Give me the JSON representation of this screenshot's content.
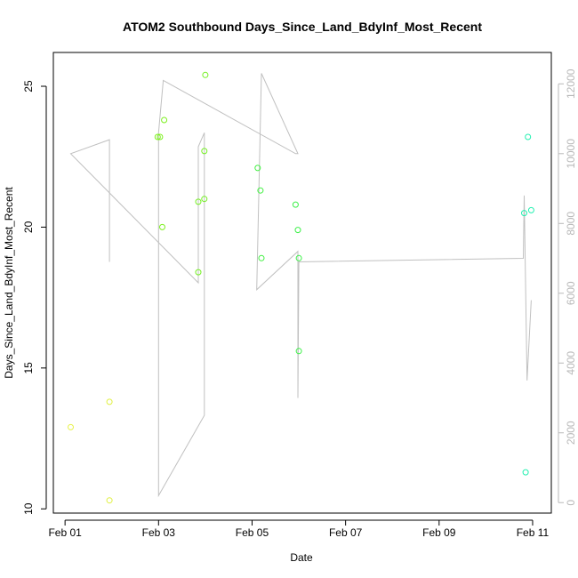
{
  "chart_data": {
    "type": "scatter",
    "title": "ATOM2 Southbound Days_Since_Land_BdyInf_Most_Recent",
    "xlabel": "Date",
    "ylabel": "Days_Since_Land_BdyInf_Most_Recent",
    "x_ticks": [
      {
        "label": "Feb 01",
        "value": 0
      },
      {
        "label": "Feb 03",
        "value": 2
      },
      {
        "label": "Feb 05",
        "value": 4
      },
      {
        "label": "Feb 07",
        "value": 6
      },
      {
        "label": "Feb 09",
        "value": 8
      },
      {
        "label": "Feb 11",
        "value": 10
      }
    ],
    "x_range": [
      -0.25,
      10.4
    ],
    "ylim": [
      9.85,
      26.2
    ],
    "y_ticks": [
      10,
      15,
      20,
      25
    ],
    "y2lim": [
      -300,
      12900
    ],
    "y2_ticks": [
      0,
      2000,
      4000,
      6000,
      8000,
      10000,
      12000
    ],
    "grid": false,
    "points": [
      {
        "x": 0.12,
        "y": 12.9,
        "color": "#e8f24a"
      },
      {
        "x": 0.95,
        "y": 13.8,
        "color": "#e0f040"
      },
      {
        "x": 0.95,
        "y": 10.3,
        "color": "#e0f040"
      },
      {
        "x": 1.98,
        "y": 23.2,
        "color": "#7cf01e"
      },
      {
        "x": 2.03,
        "y": 23.2,
        "color": "#7cf01e"
      },
      {
        "x": 2.08,
        "y": 20.0,
        "color": "#7cf01e"
      },
      {
        "x": 2.12,
        "y": 23.8,
        "color": "#7cf01e"
      },
      {
        "x": 2.85,
        "y": 18.4,
        "color": "#74f022"
      },
      {
        "x": 2.85,
        "y": 20.9,
        "color": "#74f022"
      },
      {
        "x": 2.98,
        "y": 22.7,
        "color": "#74f022"
      },
      {
        "x": 2.98,
        "y": 21.0,
        "color": "#74f022"
      },
      {
        "x": 3.0,
        "y": 25.4,
        "color": "#74f022"
      },
      {
        "x": 4.12,
        "y": 22.1,
        "color": "#40f040"
      },
      {
        "x": 4.18,
        "y": 21.3,
        "color": "#40f040"
      },
      {
        "x": 4.2,
        "y": 18.9,
        "color": "#40f040"
      },
      {
        "x": 4.93,
        "y": 20.8,
        "color": "#3cf048"
      },
      {
        "x": 4.98,
        "y": 19.9,
        "color": "#3cf048"
      },
      {
        "x": 5.0,
        "y": 18.9,
        "color": "#3cf048"
      },
      {
        "x": 5.0,
        "y": 15.6,
        "color": "#3cf048"
      },
      {
        "x": 9.82,
        "y": 20.5,
        "color": "#22f0b0"
      },
      {
        "x": 9.85,
        "y": 11.3,
        "color": "#22f0b0"
      },
      {
        "x": 9.9,
        "y": 23.2,
        "color": "#22f0b0"
      },
      {
        "x": 9.97,
        "y": 20.6,
        "color": "#22f0b0"
      }
    ],
    "line_series": {
      "axis": "right",
      "color": "#c0c0c0",
      "points": [
        [
          0.95,
          6900
        ],
        [
          0.95,
          10400
        ],
        [
          0.12,
          10000
        ],
        [
          2.85,
          6300
        ],
        [
          2.85,
          10200
        ],
        [
          2.98,
          10600
        ],
        [
          2.98,
          2500
        ],
        [
          2.0,
          200
        ],
        [
          2.0,
          10600
        ],
        [
          2.1,
          12100
        ],
        [
          4.93,
          10000
        ],
        [
          4.98,
          10000
        ],
        [
          4.2,
          12300
        ],
        [
          4.1,
          6100
        ],
        [
          4.98,
          7200
        ],
        [
          4.98,
          3000
        ],
        [
          5.0,
          6900
        ],
        [
          9.8,
          7000
        ],
        [
          9.82,
          8800
        ],
        [
          9.88,
          3500
        ],
        [
          9.97,
          5800
        ]
      ]
    }
  }
}
